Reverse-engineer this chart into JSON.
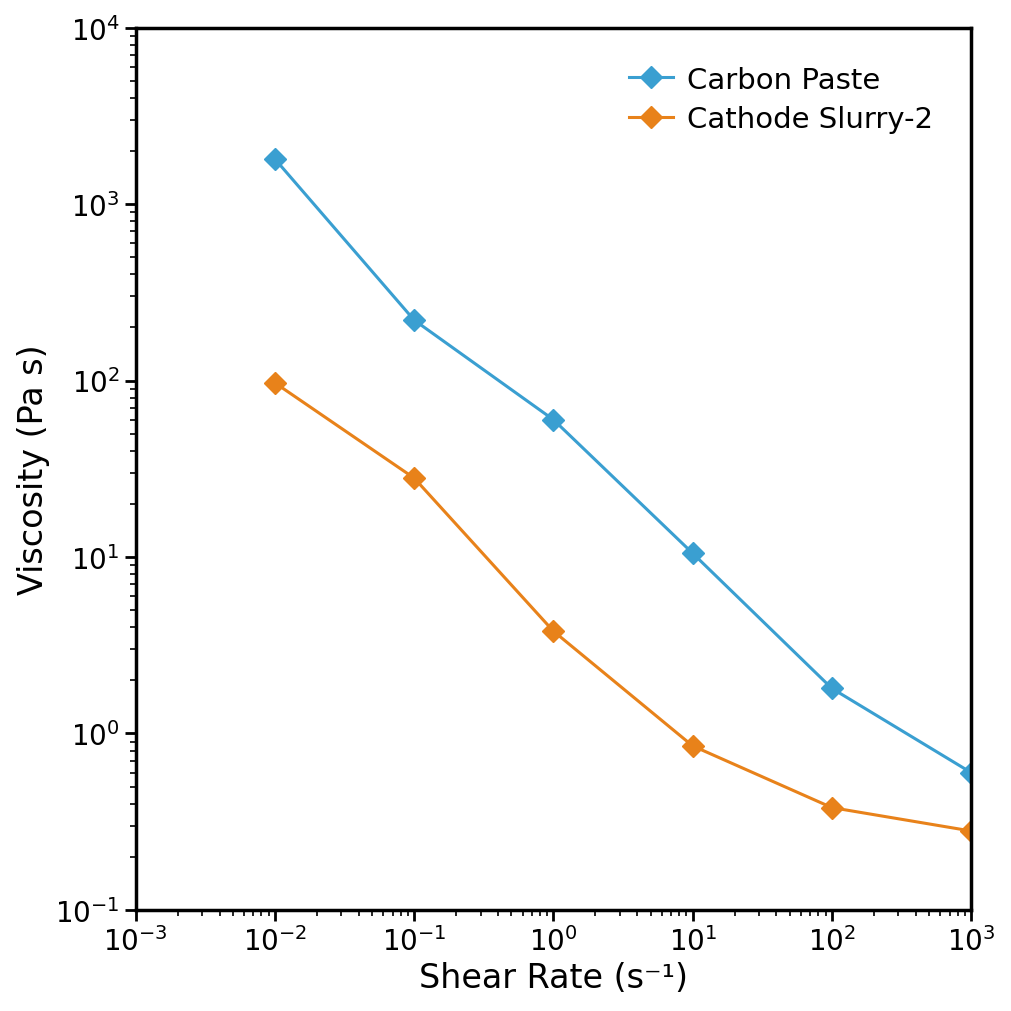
{
  "carbon_paste_x": [
    0.01,
    0.1,
    1.0,
    10.0,
    100.0,
    1000.0
  ],
  "carbon_paste_y": [
    1800,
    220,
    60,
    10.5,
    1.8,
    0.6
  ],
  "cathode_slurry_x": [
    0.01,
    0.1,
    1.0,
    10.0,
    100.0,
    1000.0
  ],
  "cathode_slurry_y": [
    97,
    28,
    3.8,
    0.85,
    0.38,
    0.28
  ],
  "carbon_paste_color": "#3a9fd1",
  "cathode_slurry_color": "#e8821a",
  "xlabel": "Shear Rate (s⁻¹)",
  "ylabel": "Viscosity (Pa s)",
  "xlim": [
    0.001,
    1000.0
  ],
  "ylim": [
    0.1,
    10000.0
  ],
  "legend_labels": [
    "Carbon Paste",
    "Cathode Slurry-2"
  ],
  "marker": "D",
  "markersize": 11,
  "linewidth": 2.2,
  "background_color": "#ffffff",
  "label_fontsize": 24,
  "tick_fontsize": 20,
  "legend_fontsize": 21,
  "spine_linewidth": 2.5
}
